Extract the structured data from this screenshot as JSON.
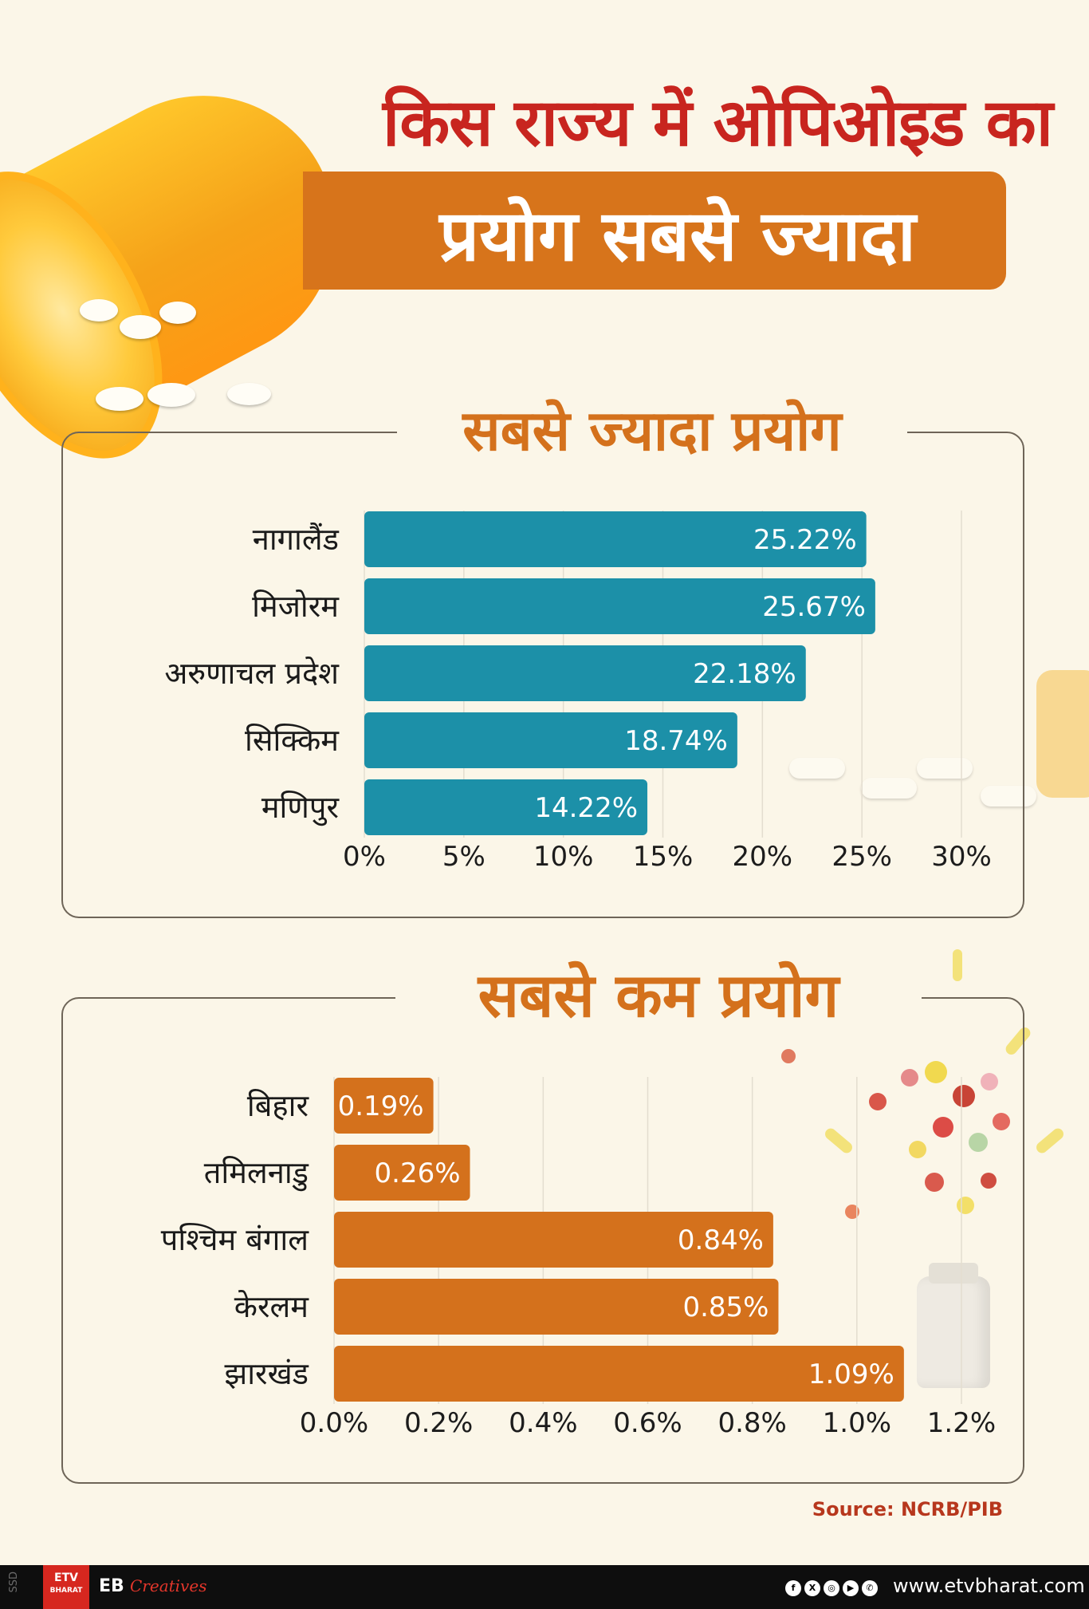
{
  "header": {
    "title_line1": "किस राज्य में ओपिओइड का",
    "title_line2": "प्रयोग सबसे ज्यादा"
  },
  "colors": {
    "top_bar": "#1c90a8",
    "bottom_bar": "#d4711c",
    "title_red": "#c8251f",
    "banner": "#d7741b"
  },
  "chart_data": [
    {
      "type": "bar",
      "orientation": "horizontal",
      "title": "सबसे ज्यादा प्रयोग",
      "categories": [
        "नागालैंड",
        "मिजोरम",
        "अरुणाचल प्रदेश",
        "सिक्किम",
        "मणिपुर"
      ],
      "values": [
        25.22,
        25.67,
        22.18,
        18.74,
        14.22
      ],
      "value_labels": [
        "25.22%",
        "25.67%",
        "22.18%",
        "18.74%",
        "14.22%"
      ],
      "xlim": [
        0,
        30
      ],
      "ticks": [
        "0%",
        "5%",
        "10%",
        "15%",
        "20%",
        "25%",
        "30%"
      ],
      "grid": true
    },
    {
      "type": "bar",
      "orientation": "horizontal",
      "title": "सबसे कम प्रयोग",
      "categories": [
        "बिहार",
        "तमिलनाडु",
        "पश्चिम बंगाल",
        "केरलम",
        "झारखंड"
      ],
      "values": [
        0.19,
        0.26,
        0.84,
        0.85,
        1.09
      ],
      "value_labels": [
        "0.19%",
        "0.26%",
        "0.84%",
        "0.85%",
        "1.09%"
      ],
      "xlim": [
        0,
        1.2
      ],
      "ticks": [
        "0.0%",
        "0.2%",
        "0.4%",
        "0.6%",
        "0.8%",
        "1.0%",
        "1.2%"
      ],
      "grid": true
    }
  ],
  "source": "Source: NCRB/PIB",
  "footer": {
    "ssd": "SSD",
    "logo": "ETV",
    "logo_sub": "BHARAT",
    "eb": "EB",
    "creatives": "Creatives",
    "site": "www.etvbharat.com",
    "social_icons": [
      "facebook-icon",
      "x-icon",
      "instagram-icon",
      "youtube-icon",
      "whatsapp-icon"
    ]
  }
}
